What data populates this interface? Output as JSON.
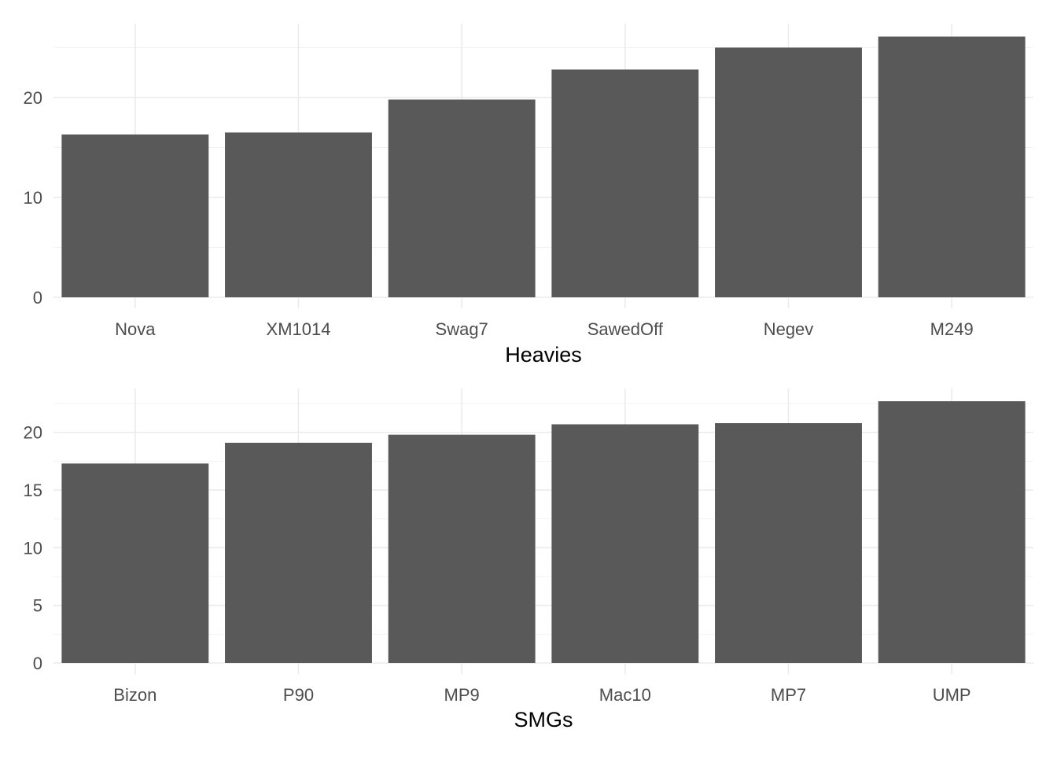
{
  "colors": {
    "background": "#ffffff",
    "bar_fill": "#595959",
    "grid_major": "#ebebeb",
    "grid_minor": "#f2f2f2",
    "tick_text": "#4d4d4d",
    "title_text": "#000000"
  },
  "chart_data": [
    {
      "type": "bar",
      "categories": [
        "Nova",
        "XM1014",
        "Swag7",
        "SawedOff",
        "Negev",
        "M249"
      ],
      "values": [
        16.3,
        16.5,
        19.8,
        22.8,
        25.0,
        26.1
      ],
      "title": "",
      "xlabel": "Heavies",
      "ylabel": "",
      "ylim": [
        0,
        27.4
      ],
      "yticks": [
        0,
        10,
        20
      ],
      "ytick_labels": [
        "0",
        "10",
        "20"
      ],
      "grid": true,
      "legend": "none"
    },
    {
      "type": "bar",
      "categories": [
        "Bizon",
        "P90",
        "MP9",
        "Mac10",
        "MP7",
        "UMP"
      ],
      "values": [
        17.3,
        19.1,
        19.8,
        20.7,
        20.8,
        22.7
      ],
      "title": "",
      "xlabel": "SMGs",
      "ylabel": "",
      "ylim": [
        0,
        23.8
      ],
      "yticks": [
        0,
        5,
        10,
        15,
        20
      ],
      "ytick_labels": [
        "0",
        "5",
        "10",
        "15",
        "20"
      ],
      "grid": true,
      "legend": "none"
    }
  ]
}
